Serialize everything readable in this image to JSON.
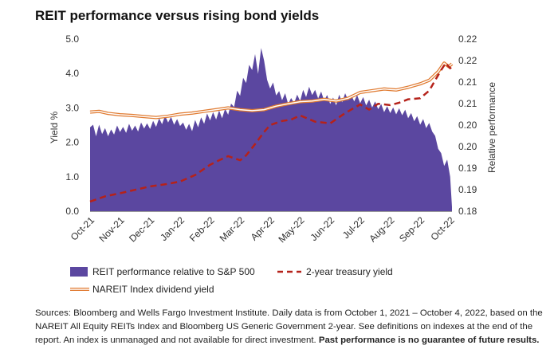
{
  "chart_data": {
    "type": "area",
    "title": "REIT performance versus rising bond yields",
    "ylabel_left": "Yield %",
    "ylabel_right": "Relative performance",
    "ylim_left": [
      0,
      5
    ],
    "ylim_right": [
      0.18,
      0.22
    ],
    "left_ticks": [
      "0.0",
      "1.0",
      "2.0",
      "3.0",
      "4.0",
      "5.0"
    ],
    "right_ticks": [
      "0.18",
      "0.19",
      "0.19",
      "0.20",
      "0.20",
      "0.21",
      "0.21",
      "0.22",
      "0.22"
    ],
    "categories": [
      "Oct-21",
      "Nov-21",
      "Dec-21",
      "Jan-22",
      "Feb-22",
      "Mar-22",
      "Apr-22",
      "May-22",
      "Jun-22",
      "Jul-22",
      "Aug-22",
      "Sep-22",
      "Oct-22"
    ],
    "series": [
      {
        "name": "REIT performance relative to S&P 500",
        "type": "area",
        "axis": "right",
        "color": "#5b47a0",
        "x": [
          0,
          0.1,
          0.2,
          0.3,
          0.4,
          0.5,
          0.6,
          0.7,
          0.8,
          0.9,
          1.0,
          1.1,
          1.2,
          1.3,
          1.4,
          1.5,
          1.6,
          1.7,
          1.8,
          1.9,
          2.0,
          2.1,
          2.2,
          2.3,
          2.4,
          2.5,
          2.6,
          2.7,
          2.8,
          2.9,
          3.0,
          3.1,
          3.2,
          3.3,
          3.4,
          3.5,
          3.6,
          3.7,
          3.8,
          3.9,
          4.0,
          4.1,
          4.2,
          4.3,
          4.4,
          4.5,
          4.6,
          4.7,
          4.8,
          4.9,
          5.0,
          5.1,
          5.2,
          5.3,
          5.4,
          5.5,
          5.6,
          5.7,
          5.8,
          5.9,
          6.0,
          6.1,
          6.2,
          6.3,
          6.4,
          6.5,
          6.6,
          6.7,
          6.8,
          6.9,
          7.0,
          7.1,
          7.2,
          7.3,
          7.4,
          7.5,
          7.6,
          7.7,
          7.8,
          7.9,
          8.0,
          8.1,
          8.2,
          8.3,
          8.4,
          8.5,
          8.6,
          8.7,
          8.8,
          8.9,
          9.0,
          9.1,
          9.2,
          9.3,
          9.4,
          9.5,
          9.6,
          9.7,
          9.8,
          9.9,
          10.0,
          10.1,
          10.2,
          10.3,
          10.4,
          10.5,
          10.6,
          10.7,
          10.8,
          10.9,
          11.0,
          11.1,
          11.2,
          11.3,
          11.4,
          11.5,
          11.6,
          11.7,
          11.8,
          11.9,
          12.0,
          12.06
        ],
        "values": [
          0.1995,
          0.2001,
          0.1974,
          0.2001,
          0.1979,
          0.1993,
          0.1974,
          0.199,
          0.1978,
          0.1999,
          0.1984,
          0.1996,
          0.1982,
          0.2003,
          0.1987,
          0.1999,
          0.1985,
          0.2006,
          0.1992,
          0.2004,
          0.1991,
          0.201,
          0.1996,
          0.2016,
          0.2002,
          0.2022,
          0.2006,
          0.2019,
          0.2001,
          0.2014,
          0.1998,
          0.2006,
          0.1989,
          0.2003,
          0.1986,
          0.2012,
          0.1995,
          0.2018,
          0.2003,
          0.2027,
          0.2011,
          0.203,
          0.2013,
          0.2034,
          0.2016,
          0.2038,
          0.2024,
          0.205,
          0.2042,
          0.208,
          0.2068,
          0.211,
          0.2098,
          0.214,
          0.2128,
          0.2165,
          0.2119,
          0.2179,
          0.215,
          0.2105,
          0.2085,
          0.2099,
          0.2069,
          0.2079,
          0.2058,
          0.2074,
          0.2049,
          0.2063,
          0.2051,
          0.2071,
          0.2056,
          0.2082,
          0.2065,
          0.2089,
          0.207,
          0.2082,
          0.2062,
          0.2078,
          0.2057,
          0.207,
          0.2049,
          0.2064,
          0.2046,
          0.2071,
          0.2053,
          0.2074,
          0.2058,
          0.2071,
          0.2055,
          0.207,
          0.2051,
          0.2065,
          0.2046,
          0.2059,
          0.2041,
          0.2055,
          0.2037,
          0.2049,
          0.203,
          0.2044,
          0.2028,
          0.2041,
          0.2025,
          0.2039,
          0.2023,
          0.2036,
          0.2016,
          0.2028,
          0.2009,
          0.2021,
          0.2001,
          0.2014,
          0.1993,
          0.2005,
          0.1985,
          0.1975,
          0.1945,
          0.1935,
          0.1905,
          0.192,
          0.188,
          0.181
        ]
      },
      {
        "name": "2-year treasury yield",
        "type": "line",
        "axis": "left",
        "style": "dashed",
        "color": "#b5221a",
        "x": [
          0,
          0.5,
          1,
          1.5,
          2,
          2.5,
          3,
          3.5,
          4,
          4.3,
          4.6,
          5,
          5.2,
          5.5,
          5.8,
          6,
          6.4,
          6.7,
          7,
          7.5,
          8,
          8.5,
          9,
          9.3,
          9.6,
          10,
          10.3,
          10.6,
          11,
          11.3,
          11.5,
          11.7,
          11.85,
          12,
          12.06
        ],
        "values": [
          0.28,
          0.43,
          0.52,
          0.62,
          0.72,
          0.78,
          0.86,
          1.05,
          1.35,
          1.48,
          1.6,
          1.48,
          1.62,
          1.95,
          2.3,
          2.5,
          2.62,
          2.66,
          2.78,
          2.6,
          2.55,
          2.85,
          3.1,
          2.95,
          3.12,
          3.08,
          3.15,
          3.25,
          3.28,
          3.5,
          3.8,
          4.1,
          4.3,
          4.15,
          4.2
        ]
      },
      {
        "name": "NAREIT Index dividend yield",
        "type": "line",
        "axis": "left",
        "style": "double",
        "color": "#e07a30",
        "x": [
          0,
          0.3,
          0.6,
          1,
          1.4,
          1.8,
          2.2,
          2.6,
          3,
          3.4,
          3.8,
          4.2,
          4.6,
          5,
          5.4,
          5.8,
          6.2,
          6.6,
          7,
          7.4,
          7.8,
          8.2,
          8.6,
          9,
          9.4,
          9.8,
          10.2,
          10.6,
          11,
          11.3,
          11.6,
          11.8,
          11.95,
          12.06
        ],
        "values": [
          2.88,
          2.9,
          2.84,
          2.8,
          2.78,
          2.75,
          2.72,
          2.76,
          2.82,
          2.85,
          2.9,
          2.95,
          3.0,
          2.95,
          2.92,
          2.95,
          3.05,
          3.12,
          3.18,
          3.2,
          3.25,
          3.2,
          3.28,
          3.45,
          3.5,
          3.55,
          3.52,
          3.6,
          3.7,
          3.8,
          4.05,
          4.3,
          4.2,
          4.28
        ]
      }
    ]
  },
  "legend": {
    "area_label": "REIT performance relative to S&P 500",
    "dashed_label": "2-year treasury yield",
    "double_label": "NAREIT Index dividend yield"
  },
  "source": {
    "text": "Sources: Bloomberg and Wells Fargo Investment Institute. Daily data is from October 1, 2021 – October 4, 2022, based on the NAREIT All Equity REITs Index and Bloomberg US Generic Government 2-year. See definitions on indexes at the end of the report. An index is unmanaged and not available for direct investment.",
    "bold": "Past performance is no guarantee of future results."
  }
}
